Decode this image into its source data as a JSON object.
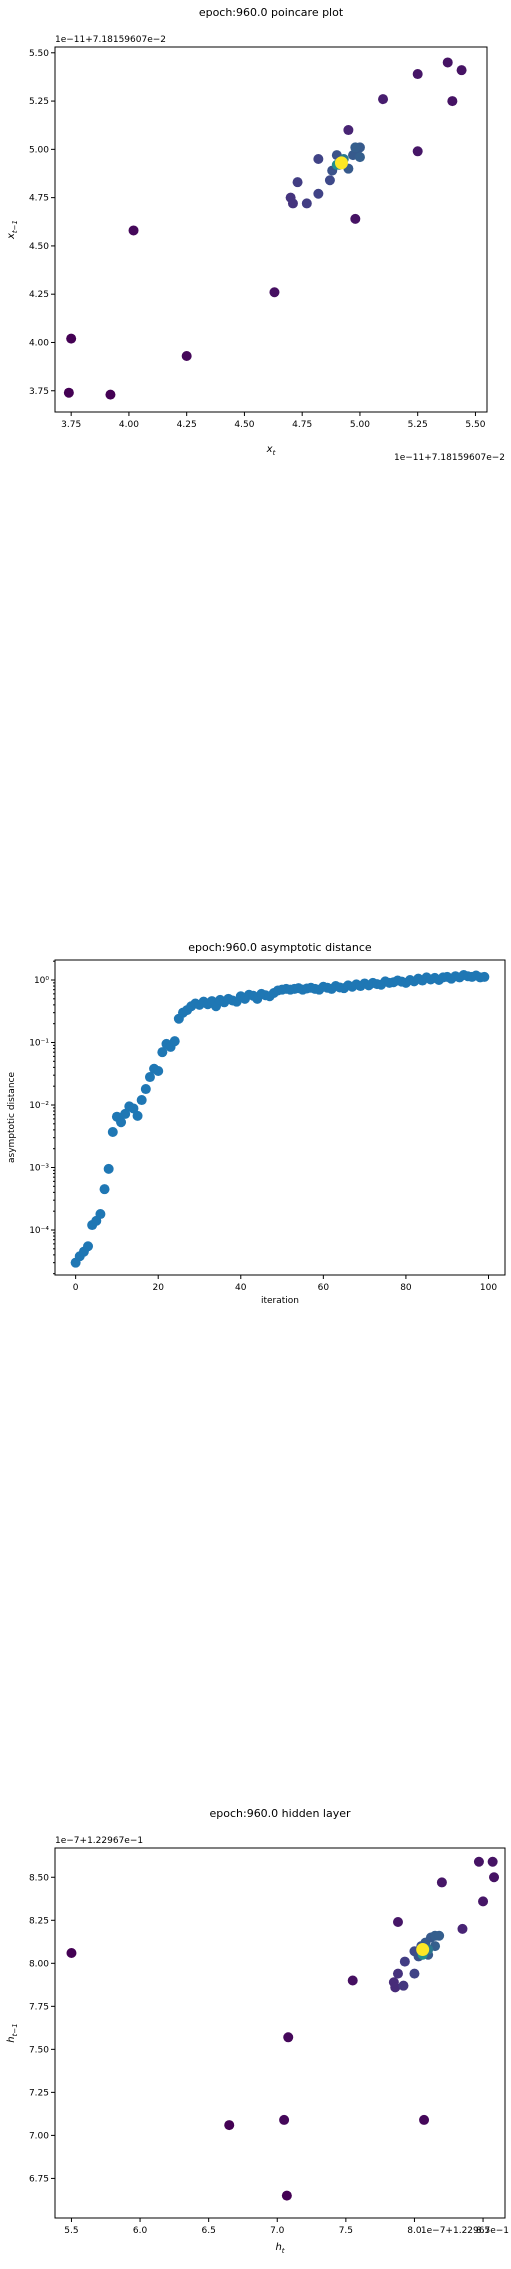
{
  "chart_data": [
    {
      "type": "scatter",
      "title": "epoch:960.0 poincare plot",
      "xlabel": "x_t",
      "ylabel": "x_{t-1}",
      "x_offset_label": "1e−11+7.18159607e−2",
      "y_offset_label": "1e−11+7.18159607e−2",
      "xlim": [
        3.68,
        5.55
      ],
      "ylim": [
        3.64,
        5.53
      ],
      "x_ticks": [
        3.75,
        4.0,
        4.25,
        4.5,
        4.75,
        5.0,
        5.25,
        5.5
      ],
      "x_tick_labels": [
        "3.75",
        "4.00",
        "4.25",
        "4.50",
        "4.75",
        "5.00",
        "5.25",
        "5.50"
      ],
      "y_ticks": [
        3.75,
        4.0,
        4.25,
        4.5,
        4.75,
        5.0,
        5.25,
        5.5
      ],
      "y_tick_labels": [
        "3.75",
        "4.00",
        "4.25",
        "4.50",
        "4.75",
        "5.00",
        "5.25",
        "5.50"
      ],
      "colormap": "viridis",
      "points": [
        {
          "x": 3.74,
          "y": 3.74,
          "c": 0.0
        },
        {
          "x": 3.75,
          "y": 4.02,
          "c": 0.0
        },
        {
          "x": 3.92,
          "y": 3.73,
          "c": 0.0
        },
        {
          "x": 4.02,
          "y": 4.58,
          "c": 0.02
        },
        {
          "x": 4.25,
          "y": 3.93,
          "c": 0.02
        },
        {
          "x": 4.63,
          "y": 4.26,
          "c": 0.04
        },
        {
          "x": 4.98,
          "y": 4.64,
          "c": 0.05
        },
        {
          "x": 5.25,
          "y": 4.99,
          "c": 0.06
        },
        {
          "x": 5.25,
          "y": 5.39,
          "c": 0.06
        },
        {
          "x": 5.38,
          "y": 5.45,
          "c": 0.05
        },
        {
          "x": 5.44,
          "y": 5.41,
          "c": 0.05
        },
        {
          "x": 5.4,
          "y": 5.25,
          "c": 0.05
        },
        {
          "x": 5.1,
          "y": 5.26,
          "c": 0.08
        },
        {
          "x": 4.95,
          "y": 5.1,
          "c": 0.1
        },
        {
          "x": 4.7,
          "y": 4.75,
          "c": 0.15
        },
        {
          "x": 4.71,
          "y": 4.72,
          "c": 0.15
        },
        {
          "x": 4.73,
          "y": 4.83,
          "c": 0.18
        },
        {
          "x": 4.77,
          "y": 4.72,
          "c": 0.18
        },
        {
          "x": 4.82,
          "y": 4.77,
          "c": 0.2
        },
        {
          "x": 4.82,
          "y": 4.95,
          "c": 0.2
        },
        {
          "x": 4.87,
          "y": 4.84,
          "c": 0.22
        },
        {
          "x": 4.88,
          "y": 4.89,
          "c": 0.25
        },
        {
          "x": 4.9,
          "y": 4.97,
          "c": 0.25
        },
        {
          "x": 4.91,
          "y": 4.92,
          "c": 0.3
        },
        {
          "x": 4.95,
          "y": 4.9,
          "c": 0.28
        },
        {
          "x": 4.97,
          "y": 4.97,
          "c": 0.28
        },
        {
          "x": 4.99,
          "y": 5.0,
          "c": 0.28
        },
        {
          "x": 5.0,
          "y": 5.01,
          "c": 0.28
        },
        {
          "x": 5.0,
          "y": 4.96,
          "c": 0.3
        },
        {
          "x": 4.98,
          "y": 5.01,
          "c": 0.3
        },
        {
          "x": 4.93,
          "y": 4.95,
          "c": 0.4
        },
        {
          "x": 4.9,
          "y": 4.92,
          "c": 0.5
        },
        {
          "x": 4.92,
          "y": 4.93,
          "c": 1.0
        }
      ]
    },
    {
      "type": "scatter",
      "title": "epoch:960.0 asymptotic distance",
      "xlabel": "iteration",
      "ylabel": "asymptotic distance",
      "yscale": "log",
      "xlim": [
        -5,
        104
      ],
      "ylim_log10": [
        -4.72,
        0.32
      ],
      "x_ticks": [
        0,
        20,
        40,
        60,
        80,
        100
      ],
      "x_tick_labels": [
        "0",
        "20",
        "40",
        "60",
        "80",
        "100"
      ],
      "y_ticks_log10": [
        -4,
        -3,
        -2,
        -1,
        0
      ],
      "y_tick_labels": [
        "10⁻⁴",
        "10⁻³",
        "10⁻²",
        "10⁻¹",
        "10⁰"
      ],
      "color": "#1f77b4",
      "x": [
        0,
        1,
        2,
        3,
        4,
        5,
        6,
        7,
        8,
        9,
        10,
        11,
        12,
        13,
        14,
        15,
        16,
        17,
        18,
        19,
        20,
        21,
        22,
        23,
        24,
        25,
        26,
        27,
        28,
        29,
        30,
        31,
        32,
        33,
        34,
        35,
        36,
        37,
        38,
        39,
        40,
        41,
        42,
        43,
        44,
        45,
        46,
        47,
        48,
        49,
        50,
        51,
        52,
        53,
        54,
        55,
        56,
        57,
        58,
        59,
        60,
        61,
        62,
        63,
        64,
        65,
        66,
        67,
        68,
        69,
        70,
        71,
        72,
        73,
        74,
        75,
        76,
        77,
        78,
        79,
        80,
        81,
        82,
        83,
        84,
        85,
        86,
        87,
        88,
        89,
        90,
        91,
        92,
        93,
        94,
        95,
        96,
        97,
        98,
        99
      ],
      "y": [
        3e-05,
        3.8e-05,
        4.5e-05,
        5.5e-05,
        0.00012,
        0.00014,
        0.00018,
        0.00045,
        0.00095,
        0.0037,
        0.0065,
        0.0053,
        0.0072,
        0.0095,
        0.0088,
        0.0067,
        0.012,
        0.018,
        0.028,
        0.038,
        0.035,
        0.07,
        0.095,
        0.085,
        0.105,
        0.24,
        0.3,
        0.33,
        0.38,
        0.42,
        0.4,
        0.45,
        0.41,
        0.46,
        0.38,
        0.48,
        0.44,
        0.5,
        0.47,
        0.45,
        0.55,
        0.5,
        0.58,
        0.56,
        0.5,
        0.6,
        0.57,
        0.55,
        0.62,
        0.68,
        0.7,
        0.72,
        0.7,
        0.72,
        0.74,
        0.7,
        0.73,
        0.75,
        0.72,
        0.7,
        0.78,
        0.75,
        0.72,
        0.8,
        0.76,
        0.74,
        0.82,
        0.78,
        0.85,
        0.8,
        0.88,
        0.82,
        0.9,
        0.86,
        0.84,
        0.95,
        0.9,
        0.92,
        0.98,
        0.94,
        0.9,
        1.0,
        0.95,
        1.05,
        0.98,
        1.1,
        1.02,
        1.08,
        1.0,
        1.1,
        1.12,
        1.05,
        1.15,
        1.1,
        1.2,
        1.15,
        1.12,
        1.18,
        1.1,
        1.12
      ]
    },
    {
      "type": "scatter",
      "title": "epoch:960.0 hidden layer",
      "xlabel": "h_t",
      "ylabel": "h_{t-1}",
      "x_offset_label": "1e−7+1.22967e−1",
      "y_offset_label": "1e−7+1.22967e−1",
      "xlim": [
        5.38,
        8.66
      ],
      "ylim": [
        6.52,
        8.67
      ],
      "x_ticks": [
        5.5,
        6.0,
        6.5,
        7.0,
        7.5,
        8.0,
        8.5
      ],
      "x_tick_labels": [
        "5.5",
        "6.0",
        "6.5",
        "7.0",
        "7.5",
        "8.0",
        "8.5"
      ],
      "y_ticks": [
        6.75,
        7.0,
        7.25,
        7.5,
        7.75,
        8.0,
        8.25,
        8.5
      ],
      "y_tick_labels": [
        "6.75",
        "7.00",
        "7.25",
        "7.50",
        "7.75",
        "8.00",
        "8.25",
        "8.50"
      ],
      "colormap": "viridis",
      "points": [
        {
          "x": 5.5,
          "y": 8.06,
          "c": 0.0
        },
        {
          "x": 6.65,
          "y": 7.06,
          "c": 0.0
        },
        {
          "x": 7.05,
          "y": 7.09,
          "c": 0.02
        },
        {
          "x": 7.07,
          "y": 6.65,
          "c": 0.0
        },
        {
          "x": 7.08,
          "y": 7.57,
          "c": 0.02
        },
        {
          "x": 8.07,
          "y": 7.09,
          "c": 0.02
        },
        {
          "x": 7.55,
          "y": 7.9,
          "c": 0.04
        },
        {
          "x": 7.88,
          "y": 8.24,
          "c": 0.06
        },
        {
          "x": 8.2,
          "y": 8.47,
          "c": 0.06
        },
        {
          "x": 8.47,
          "y": 8.59,
          "c": 0.05
        },
        {
          "x": 8.57,
          "y": 8.59,
          "c": 0.05
        },
        {
          "x": 8.58,
          "y": 8.5,
          "c": 0.05
        },
        {
          "x": 8.5,
          "y": 8.36,
          "c": 0.06
        },
        {
          "x": 8.35,
          "y": 8.2,
          "c": 0.1
        },
        {
          "x": 7.85,
          "y": 7.89,
          "c": 0.12
        },
        {
          "x": 7.86,
          "y": 7.86,
          "c": 0.12
        },
        {
          "x": 7.88,
          "y": 7.94,
          "c": 0.14
        },
        {
          "x": 7.92,
          "y": 7.87,
          "c": 0.16
        },
        {
          "x": 7.93,
          "y": 8.01,
          "c": 0.18
        },
        {
          "x": 8.0,
          "y": 7.94,
          "c": 0.2
        },
        {
          "x": 8.0,
          "y": 8.07,
          "c": 0.22
        },
        {
          "x": 8.03,
          "y": 8.04,
          "c": 0.25
        },
        {
          "x": 8.05,
          "y": 8.1,
          "c": 0.25
        },
        {
          "x": 8.08,
          "y": 8.12,
          "c": 0.28
        },
        {
          "x": 8.1,
          "y": 8.05,
          "c": 0.28
        },
        {
          "x": 8.12,
          "y": 8.15,
          "c": 0.28
        },
        {
          "x": 8.15,
          "y": 8.16,
          "c": 0.3
        },
        {
          "x": 8.15,
          "y": 8.1,
          "c": 0.3
        },
        {
          "x": 8.18,
          "y": 8.16,
          "c": 0.3
        },
        {
          "x": 8.1,
          "y": 8.08,
          "c": 0.4
        },
        {
          "x": 8.06,
          "y": 8.05,
          "c": 0.5
        },
        {
          "x": 8.06,
          "y": 8.08,
          "c": 1.0
        }
      ]
    }
  ]
}
